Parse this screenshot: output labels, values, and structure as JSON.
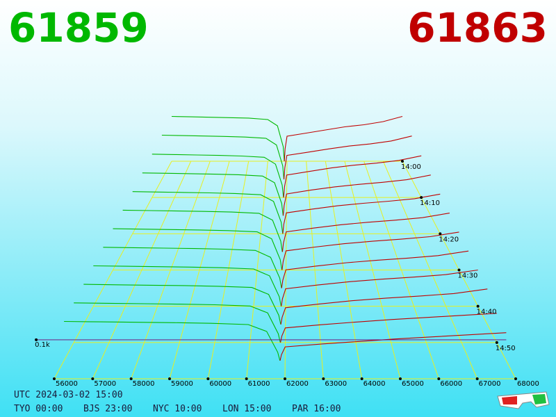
{
  "chart_data": {
    "type": "depth3d",
    "bid_price": "61859",
    "ask_price": "61863",
    "bid_color": "#00b800",
    "ask_color": "#c00000",
    "xlim": [
      56000,
      68000
    ],
    "xticks": [
      56000,
      57000,
      58000,
      59000,
      60000,
      61000,
      62000,
      63000,
      64000,
      65000,
      66000,
      67000,
      68000
    ],
    "tlim": [
      0,
      60
    ],
    "tticks": [
      {
        "value": 0,
        "label": "14:00"
      },
      {
        "value": 10,
        "label": "14:10"
      },
      {
        "value": 20,
        "label": "14:20"
      },
      {
        "value": 30,
        "label": "14:30"
      },
      {
        "value": 40,
        "label": "14:40"
      },
      {
        "value": 50,
        "label": "14:50"
      }
    ],
    "zticks": [
      {
        "value": 100,
        "label": "0.1k"
      }
    ],
    "bid_x": [
      56000,
      57000,
      58000,
      59000,
      60000,
      61000,
      61500,
      61800,
      61859
    ],
    "ask_x": [
      61863,
      61900,
      62000,
      63000,
      64000,
      65000,
      66000,
      67000,
      68000
    ],
    "slices": [
      {
        "t": 0,
        "bids": [
          215,
          213,
          211,
          209,
          207,
          200,
          170,
          70,
          0
        ],
        "asks": [
          0,
          60,
          120,
          135,
          150,
          165,
          175,
          190,
          215
        ]
      },
      {
        "t": 5,
        "bids": [
          212,
          210,
          208,
          206,
          203,
          197,
          165,
          65,
          0
        ],
        "asks": [
          0,
          55,
          115,
          130,
          146,
          160,
          170,
          184,
          208
        ]
      },
      {
        "t": 10,
        "bids": [
          208,
          206,
          204,
          202,
          199,
          193,
          160,
          60,
          0
        ],
        "asks": [
          0,
          50,
          108,
          125,
          142,
          155,
          165,
          178,
          200
        ]
      },
      {
        "t": 15,
        "bids": [
          205,
          203,
          201,
          199,
          196,
          190,
          158,
          58,
          0
        ],
        "asks": [
          0,
          48,
          104,
          122,
          138,
          150,
          160,
          172,
          195
        ]
      },
      {
        "t": 20,
        "bids": [
          202,
          200,
          198,
          196,
          193,
          187,
          155,
          55,
          0
        ],
        "asks": [
          0,
          45,
          100,
          118,
          134,
          146,
          156,
          168,
          190
        ]
      },
      {
        "t": 25,
        "bids": [
          200,
          198,
          196,
          194,
          191,
          185,
          152,
          52,
          0
        ],
        "asks": [
          0,
          42,
          96,
          114,
          130,
          142,
          152,
          164,
          186
        ]
      },
      {
        "t": 30,
        "bids": [
          198,
          196,
          194,
          192,
          189,
          183,
          150,
          50,
          0
        ],
        "asks": [
          0,
          40,
          92,
          110,
          126,
          138,
          148,
          160,
          182
        ]
      },
      {
        "t": 35,
        "bids": [
          196,
          194,
          192,
          190,
          187,
          181,
          148,
          48,
          0
        ],
        "asks": [
          0,
          38,
          88,
          106,
          122,
          134,
          144,
          156,
          178
        ]
      },
      {
        "t": 40,
        "bids": [
          194,
          192,
          190,
          188,
          185,
          179,
          146,
          46,
          0
        ],
        "asks": [
          0,
          36,
          84,
          102,
          118,
          130,
          140,
          152,
          174
        ]
      },
      {
        "t": 45,
        "bids": [
          192,
          190,
          188,
          186,
          183,
          177,
          144,
          44,
          0
        ],
        "asks": [
          0,
          34,
          80,
          98,
          114,
          126,
          136,
          148,
          170
        ]
      },
      {
        "t": 50,
        "bids": [
          190,
          188,
          186,
          184,
          181,
          175,
          142,
          42,
          0
        ],
        "asks": [
          0,
          30,
          70,
          85,
          98,
          110,
          120,
          130,
          140
        ]
      },
      {
        "t": 55,
        "bids": [
          188,
          186,
          184,
          182,
          179,
          173,
          140,
          40,
          0
        ],
        "asks": [
          0,
          28,
          66,
          80,
          92,
          104,
          114,
          124,
          134
        ]
      }
    ],
    "utc": "UTC 2024-03-02 15:00",
    "zones": [
      "TYO 00:00",
      "BJS 23:00",
      "NYC 10:00",
      "LON 15:00",
      "PAR 16:00"
    ]
  }
}
